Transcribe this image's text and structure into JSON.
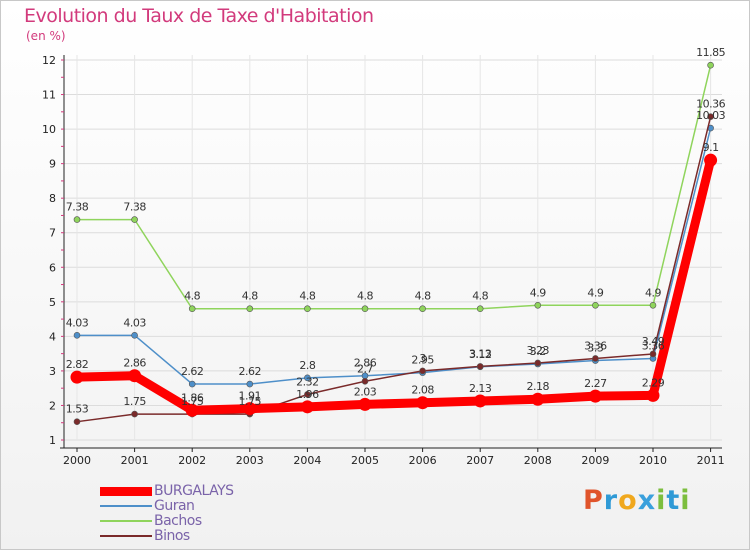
{
  "header": {
    "title": "Evolution du Taux de Taxe d'Habitation",
    "subtitle": "(en %)"
  },
  "logo": {
    "letters": [
      "P",
      "r",
      "o",
      "x",
      "i",
      "t",
      "i"
    ],
    "colors": [
      "#e0542b",
      "#2f9ad6",
      "#f0a81e",
      "#3aa0dc",
      "#7cbe3e",
      "#2f9ad6",
      "#7cbe3e"
    ]
  },
  "chart_data": {
    "type": "line",
    "x": [
      "2000",
      "2001",
      "2002",
      "2003",
      "2004",
      "2005",
      "2006",
      "2007",
      "2008",
      "2009",
      "2010",
      "2011"
    ],
    "y_ticks": [
      "1",
      "2",
      "3",
      "4",
      "5",
      "6",
      "7",
      "8",
      "9",
      "10",
      "11",
      "12"
    ],
    "ylim": [
      1,
      12
    ],
    "legend_placement": "bottom-left",
    "series": [
      {
        "name": "BURGALAYS",
        "color": "#ff0000",
        "values": [
          2.82,
          2.86,
          1.86,
          1.91,
          1.96,
          2.03,
          2.08,
          2.13,
          2.18,
          2.27,
          2.29,
          9.1
        ],
        "labels": [
          "2.82",
          "2.86",
          "1.86",
          "1.91",
          "1.96",
          "2.03",
          "2.08",
          "2.13",
          "2.18",
          "2.27",
          "2.29",
          "9.1"
        ]
      },
      {
        "name": "Guran",
        "color": "#4e8fc9",
        "values": [
          4.03,
          4.03,
          2.62,
          2.62,
          2.8,
          2.86,
          2.95,
          3.12,
          3.2,
          3.3,
          3.36,
          10.03
        ],
        "labels": [
          "4.03",
          "4.03",
          "2.62",
          "2.62",
          "2.8",
          "2.86",
          "2.95",
          "3.12",
          "3.2",
          "3.3",
          "3.36",
          "10.03"
        ]
      },
      {
        "name": "Bachos",
        "color": "#8fd45c",
        "values": [
          7.38,
          7.38,
          4.8,
          4.8,
          4.8,
          4.8,
          4.8,
          4.8,
          4.9,
          4.9,
          4.9,
          11.85
        ],
        "labels": [
          "7.38",
          "7.38",
          "4.8",
          "4.8",
          "4.8",
          "4.8",
          "4.8",
          "4.8",
          "4.9",
          "4.9",
          "4.9",
          "11.85"
        ]
      },
      {
        "name": "Binos",
        "color": "#7a2a2a",
        "values": [
          1.53,
          1.75,
          1.75,
          1.75,
          2.32,
          2.7,
          3.0,
          3.13,
          3.23,
          3.36,
          3.49,
          10.36
        ],
        "labels": [
          "1.53",
          "1.75",
          "1.75",
          "1.75",
          "2.32",
          "2.7",
          "3",
          "3.13",
          "3.23",
          "3.36",
          "3.49",
          "10.36"
        ]
      }
    ]
  }
}
